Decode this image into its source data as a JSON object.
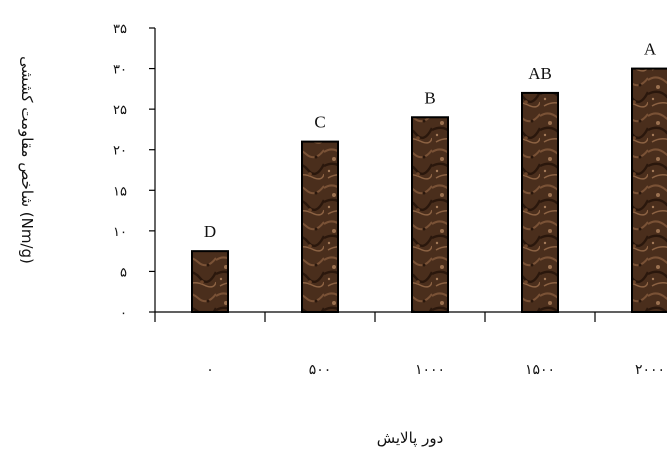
{
  "chart_data": {
    "type": "bar",
    "categories": [
      "۰",
      "۵۰۰",
      "۱۰۰۰",
      "۱۵۰۰",
      "۲۰۰۰"
    ],
    "values": [
      7.5,
      21,
      24,
      27,
      30
    ],
    "significance_letters": [
      "D",
      "C",
      "B",
      "AB",
      "A"
    ],
    "xlabel": "دور پالایش",
    "ylabel": "شاخص مقاومت کششی (Nm/g)",
    "ylim": [
      0,
      35
    ],
    "yticks": [
      0,
      5,
      10,
      15,
      20,
      25,
      30,
      35
    ],
    "ytick_labels": [
      "۰",
      "۵",
      "۱۰",
      "۱۵",
      "۲۰",
      "۲۵",
      "۳۰",
      "۳۵"
    ],
    "grid": false,
    "legend": "none",
    "bar_color": "#4a2e1c",
    "bar_texture": "brown-marble"
  }
}
